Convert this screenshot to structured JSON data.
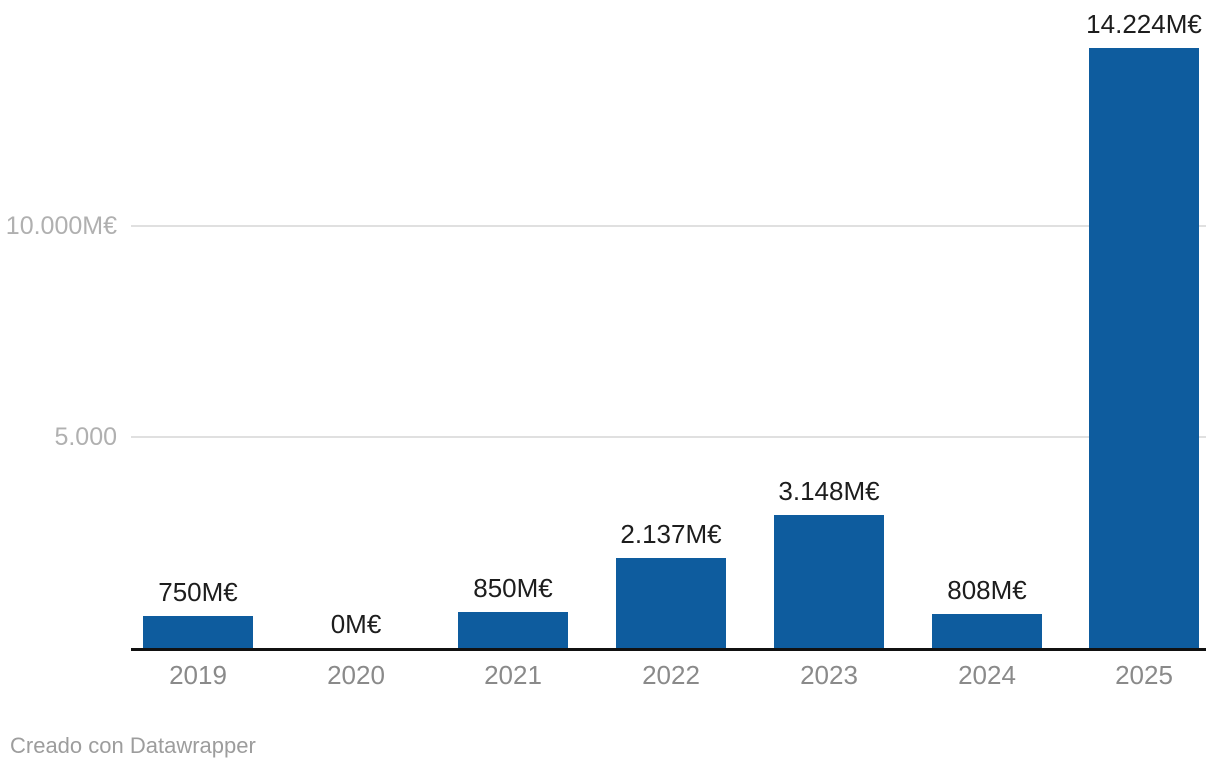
{
  "chart_data": {
    "type": "bar",
    "title": "",
    "xlabel": "",
    "ylabel": "",
    "unit": "M€",
    "categories": [
      "2019",
      "2020",
      "2021",
      "2022",
      "2023",
      "2024",
      "2025"
    ],
    "values": [
      750,
      0,
      850,
      2137,
      3148,
      808,
      14224
    ],
    "bar_labels": [
      "750M€",
      "0M€",
      "850M€",
      "2.137M€",
      "3.148M€",
      "808M€",
      "14.224M€"
    ],
    "y_ticks": [
      {
        "value": 5000,
        "label": "5.000"
      },
      {
        "value": 10000,
        "label": "10.000M€"
      }
    ],
    "ylim": [
      0,
      14224
    ],
    "grid": true,
    "legend_position": "none",
    "bar_color": "#0e5c9e",
    "value_label_color": "#1d1d1d",
    "x_tick_color": "#8a8a8a",
    "y_tick_color": "#b0b0b0",
    "gridline_color": "#e0e0e0",
    "axis_line_color": "#111111"
  },
  "footer": {
    "credit": "Creado con Datawrapper"
  }
}
